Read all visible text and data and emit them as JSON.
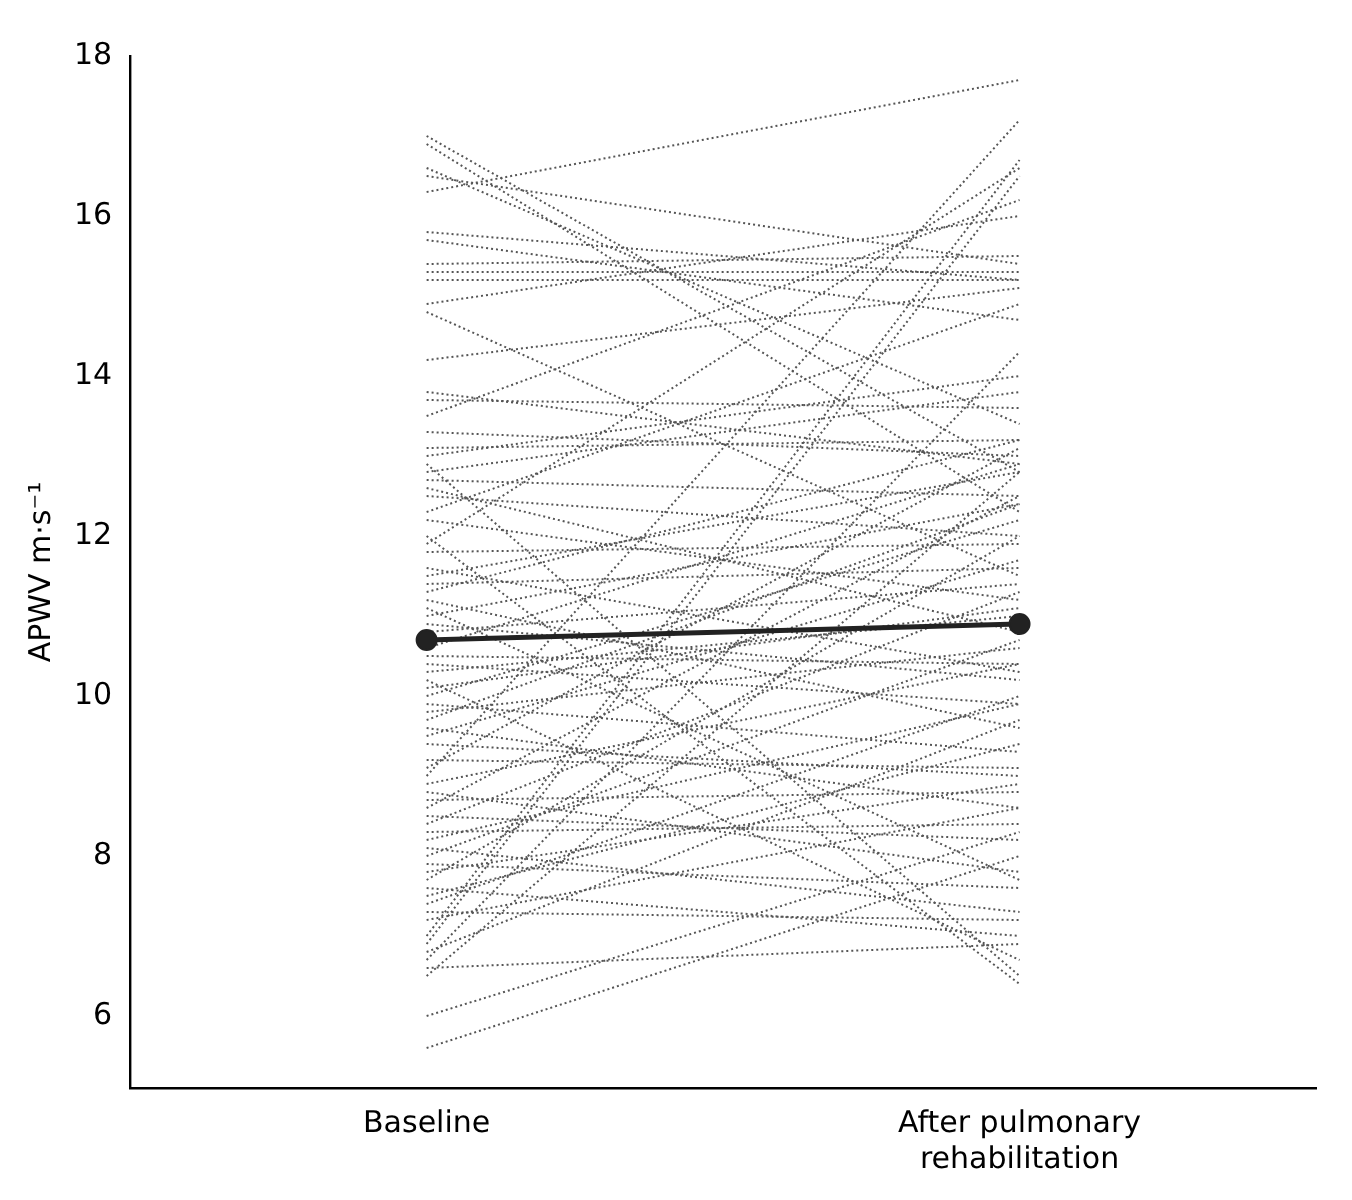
{
  "chart_data": {
    "type": "line",
    "ylabel": "APWV m·s⁻¹",
    "categories": [
      "Baseline",
      "After pulmonary rehabilitation"
    ],
    "ylim": [
      5.1,
      18
    ],
    "yticks": [
      6,
      8,
      10,
      12,
      14,
      16,
      18
    ],
    "grid": false,
    "legend": false,
    "series": [
      {
        "color": "#222222",
        "line_style": "solid",
        "marker": "circle",
        "values": [
          10.7,
          10.9
        ]
      },
      {
        "color": "#555555",
        "line_style": "dotted",
        "marker": "none",
        "values": [
          16.3,
          17.7
        ]
      },
      {
        "color": "#555555",
        "line_style": "dotted",
        "marker": "none",
        "values": [
          17.0,
          12.8
        ]
      },
      {
        "color": "#555555",
        "line_style": "dotted",
        "marker": "none",
        "values": [
          16.9,
          12.3
        ]
      },
      {
        "color": "#555555",
        "line_style": "dotted",
        "marker": "none",
        "values": [
          16.6,
          13.4
        ]
      },
      {
        "color": "#555555",
        "line_style": "dotted",
        "marker": "none",
        "values": [
          16.5,
          15.4
        ]
      },
      {
        "color": "#555555",
        "line_style": "dotted",
        "marker": "none",
        "values": [
          15.8,
          15.2
        ]
      },
      {
        "color": "#555555",
        "line_style": "dotted",
        "marker": "none",
        "values": [
          15.7,
          14.7
        ]
      },
      {
        "color": "#555555",
        "line_style": "dotted",
        "marker": "none",
        "values": [
          15.4,
          15.5
        ]
      },
      {
        "color": "#555555",
        "line_style": "dotted",
        "marker": "none",
        "values": [
          15.3,
          15.3
        ]
      },
      {
        "color": "#555555",
        "line_style": "dotted",
        "marker": "none",
        "values": [
          15.2,
          15.2
        ]
      },
      {
        "color": "#555555",
        "line_style": "dotted",
        "marker": "none",
        "values": [
          14.9,
          16.0
        ]
      },
      {
        "color": "#555555",
        "line_style": "dotted",
        "marker": "none",
        "values": [
          14.8,
          11.5
        ]
      },
      {
        "color": "#555555",
        "line_style": "dotted",
        "marker": "none",
        "values": [
          14.2,
          15.1
        ]
      },
      {
        "color": "#555555",
        "line_style": "dotted",
        "marker": "none",
        "values": [
          13.8,
          12.9
        ]
      },
      {
        "color": "#555555",
        "line_style": "dotted",
        "marker": "none",
        "values": [
          13.7,
          13.6
        ]
      },
      {
        "color": "#555555",
        "line_style": "dotted",
        "marker": "none",
        "values": [
          13.5,
          16.2
        ]
      },
      {
        "color": "#555555",
        "line_style": "dotted",
        "marker": "none",
        "values": [
          13.3,
          13.0
        ]
      },
      {
        "color": "#555555",
        "line_style": "dotted",
        "marker": "none",
        "values": [
          13.1,
          13.2
        ]
      },
      {
        "color": "#555555",
        "line_style": "dotted",
        "marker": "none",
        "values": [
          13.0,
          14.0
        ]
      },
      {
        "color": "#555555",
        "line_style": "dotted",
        "marker": "none",
        "values": [
          12.9,
          6.5
        ]
      },
      {
        "color": "#555555",
        "line_style": "dotted",
        "marker": "none",
        "values": [
          12.8,
          13.8
        ]
      },
      {
        "color": "#555555",
        "line_style": "dotted",
        "marker": "none",
        "values": [
          12.7,
          12.5
        ]
      },
      {
        "color": "#555555",
        "line_style": "dotted",
        "marker": "none",
        "values": [
          12.6,
          10.8
        ]
      },
      {
        "color": "#555555",
        "line_style": "dotted",
        "marker": "none",
        "values": [
          12.5,
          12.0
        ]
      },
      {
        "color": "#555555",
        "line_style": "dotted",
        "marker": "none",
        "values": [
          12.3,
          14.9
        ]
      },
      {
        "color": "#555555",
        "line_style": "dotted",
        "marker": "none",
        "values": [
          12.2,
          11.2
        ]
      },
      {
        "color": "#555555",
        "line_style": "dotted",
        "marker": "none",
        "values": [
          12.0,
          6.4
        ]
      },
      {
        "color": "#555555",
        "line_style": "dotted",
        "marker": "none",
        "values": [
          11.9,
          16.6
        ]
      },
      {
        "color": "#555555",
        "line_style": "dotted",
        "marker": "none",
        "values": [
          11.8,
          11.9
        ]
      },
      {
        "color": "#555555",
        "line_style": "dotted",
        "marker": "none",
        "values": [
          11.6,
          10.3
        ]
      },
      {
        "color": "#555555",
        "line_style": "dotted",
        "marker": "none",
        "values": [
          11.5,
          12.8
        ]
      },
      {
        "color": "#555555",
        "line_style": "dotted",
        "marker": "none",
        "values": [
          11.4,
          11.6
        ]
      },
      {
        "color": "#555555",
        "line_style": "dotted",
        "marker": "none",
        "values": [
          11.2,
          9.6
        ]
      },
      {
        "color": "#555555",
        "line_style": "dotted",
        "marker": "none",
        "values": [
          11.1,
          7.7
        ]
      },
      {
        "color": "#555555",
        "line_style": "dotted",
        "marker": "none",
        "values": [
          11.0,
          12.4
        ]
      },
      {
        "color": "#555555",
        "line_style": "dotted",
        "marker": "none",
        "values": [
          10.9,
          10.2
        ]
      },
      {
        "color": "#555555",
        "line_style": "dotted",
        "marker": "none",
        "values": [
          10.8,
          11.4
        ]
      },
      {
        "color": "#555555",
        "line_style": "dotted",
        "marker": "none",
        "values": [
          11.3,
          13.2
        ]
      },
      {
        "color": "#555555",
        "line_style": "dotted",
        "marker": "none",
        "values": [
          10.6,
          12.9
        ]
      },
      {
        "color": "#555555",
        "line_style": "dotted",
        "marker": "none",
        "values": [
          10.5,
          10.4
        ]
      },
      {
        "color": "#555555",
        "line_style": "dotted",
        "marker": "none",
        "values": [
          10.4,
          9.9
        ]
      },
      {
        "color": "#555555",
        "line_style": "dotted",
        "marker": "none",
        "values": [
          10.3,
          11.0
        ]
      },
      {
        "color": "#555555",
        "line_style": "dotted",
        "marker": "none",
        "values": [
          10.2,
          6.7
        ]
      },
      {
        "color": "#555555",
        "line_style": "dotted",
        "marker": "none",
        "values": [
          10.1,
          11.1
        ]
      },
      {
        "color": "#555555",
        "line_style": "dotted",
        "marker": "none",
        "values": [
          10.0,
          12.2
        ]
      },
      {
        "color": "#555555",
        "line_style": "dotted",
        "marker": "none",
        "values": [
          9.9,
          9.3
        ]
      },
      {
        "color": "#555555",
        "line_style": "dotted",
        "marker": "none",
        "values": [
          9.8,
          10.6
        ]
      },
      {
        "color": "#555555",
        "line_style": "dotted",
        "marker": "none",
        "values": [
          9.7,
          12.4
        ]
      },
      {
        "color": "#555555",
        "line_style": "dotted",
        "marker": "none",
        "values": [
          9.6,
          8.6
        ]
      },
      {
        "color": "#555555",
        "line_style": "dotted",
        "marker": "none",
        "values": [
          9.5,
          11.7
        ]
      },
      {
        "color": "#555555",
        "line_style": "dotted",
        "marker": "none",
        "values": [
          9.4,
          9.0
        ]
      },
      {
        "color": "#555555",
        "line_style": "dotted",
        "marker": "none",
        "values": [
          9.2,
          9.1
        ]
      },
      {
        "color": "#555555",
        "line_style": "dotted",
        "marker": "none",
        "values": [
          9.1,
          13.1
        ]
      },
      {
        "color": "#555555",
        "line_style": "dotted",
        "marker": "none",
        "values": [
          9.0,
          17.2
        ]
      },
      {
        "color": "#555555",
        "line_style": "dotted",
        "marker": "none",
        "values": [
          8.9,
          10.4
        ]
      },
      {
        "color": "#555555",
        "line_style": "dotted",
        "marker": "none",
        "values": [
          8.8,
          7.8
        ]
      },
      {
        "color": "#555555",
        "line_style": "dotted",
        "marker": "none",
        "values": [
          8.7,
          8.8
        ]
      },
      {
        "color": "#555555",
        "line_style": "dotted",
        "marker": "none",
        "values": [
          8.6,
          12.5
        ]
      },
      {
        "color": "#555555",
        "line_style": "dotted",
        "marker": "none",
        "values": [
          8.5,
          8.2
        ]
      },
      {
        "color": "#555555",
        "line_style": "dotted",
        "marker": "none",
        "values": [
          8.4,
          11.3
        ]
      },
      {
        "color": "#555555",
        "line_style": "dotted",
        "marker": "none",
        "values": [
          8.3,
          8.4
        ]
      },
      {
        "color": "#555555",
        "line_style": "dotted",
        "marker": "none",
        "values": [
          8.2,
          9.9
        ]
      },
      {
        "color": "#555555",
        "line_style": "dotted",
        "marker": "none",
        "values": [
          8.1,
          7.3
        ]
      },
      {
        "color": "#555555",
        "line_style": "dotted",
        "marker": "none",
        "values": [
          8.0,
          10.7
        ]
      },
      {
        "color": "#555555",
        "line_style": "dotted",
        "marker": "none",
        "values": [
          7.9,
          7.6
        ]
      },
      {
        "color": "#555555",
        "line_style": "dotted",
        "marker": "none",
        "values": [
          7.8,
          8.9
        ]
      },
      {
        "color": "#555555",
        "line_style": "dotted",
        "marker": "none",
        "values": [
          7.7,
          12.0
        ]
      },
      {
        "color": "#555555",
        "line_style": "dotted",
        "marker": "none",
        "values": [
          7.6,
          7.0
        ]
      },
      {
        "color": "#555555",
        "line_style": "dotted",
        "marker": "none",
        "values": [
          7.5,
          9.4
        ]
      },
      {
        "color": "#555555",
        "line_style": "dotted",
        "marker": "none",
        "values": [
          7.4,
          10.0
        ]
      },
      {
        "color": "#555555",
        "line_style": "dotted",
        "marker": "none",
        "values": [
          7.3,
          7.2
        ]
      },
      {
        "color": "#555555",
        "line_style": "dotted",
        "marker": "none",
        "values": [
          7.2,
          8.6
        ]
      },
      {
        "color": "#555555",
        "line_style": "dotted",
        "marker": "none",
        "values": [
          7.0,
          16.7
        ]
      },
      {
        "color": "#555555",
        "line_style": "dotted",
        "marker": "none",
        "values": [
          6.9,
          16.5
        ]
      },
      {
        "color": "#555555",
        "line_style": "dotted",
        "marker": "none",
        "values": [
          6.8,
          9.7
        ]
      },
      {
        "color": "#555555",
        "line_style": "dotted",
        "marker": "none",
        "values": [
          6.7,
          14.3
        ]
      },
      {
        "color": "#555555",
        "line_style": "dotted",
        "marker": "none",
        "values": [
          6.6,
          6.9
        ]
      },
      {
        "color": "#555555",
        "line_style": "dotted",
        "marker": "none",
        "values": [
          6.5,
          12.8
        ]
      },
      {
        "color": "#555555",
        "line_style": "dotted",
        "marker": "none",
        "values": [
          6.0,
          8.3
        ]
      },
      {
        "color": "#555555",
        "line_style": "dotted",
        "marker": "none",
        "values": [
          5.6,
          8.0
        ]
      }
    ]
  }
}
